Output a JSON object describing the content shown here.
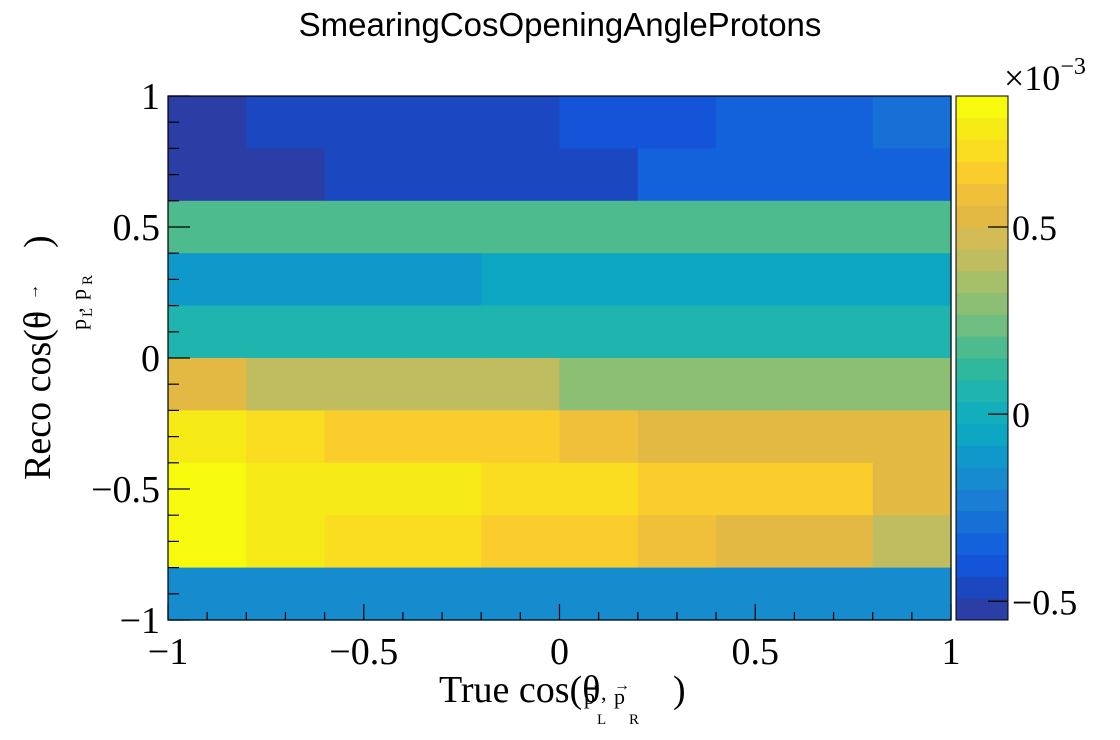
{
  "chart_data": {
    "type": "heatmap",
    "title": "SmearingCosOpeningAngleProtons",
    "xlabel": {
      "prefix": "True cos(θ",
      "suffix": ")"
    },
    "ylabel": {
      "prefix": "Reco cos(θ",
      "suffix": ")"
    },
    "subscript": {
      "p": "p",
      "L": "L",
      "R": "R",
      "comma": ","
    },
    "xlim": [
      -1,
      1
    ],
    "ylim": [
      -1,
      1
    ],
    "x_ticks": [
      "−1",
      "−0.5",
      "0",
      "0.5",
      "1"
    ],
    "y_ticks": [
      "−1",
      "−0.5",
      "0",
      "0.5",
      "1"
    ],
    "colorbar": {
      "exponent_base": "×10",
      "exponent_power": "−3",
      "range": [
        -0.00055,
        0.00085
      ],
      "ticks": [
        "−0.5",
        "0",
        "0.5"
      ],
      "tick_values": [
        -0.0005,
        0,
        0.0005
      ]
    },
    "x_edges": [
      -1,
      -0.8,
      -0.6,
      -0.4,
      -0.2,
      0,
      0.2,
      0.4,
      0.6,
      0.8,
      1
    ],
    "y_edges": [
      -1,
      -0.8,
      -0.6,
      -0.4,
      -0.2,
      0,
      0.2,
      0.4,
      0.6,
      0.8,
      1
    ],
    "z_rows_top_to_bottom": [
      [
        -0.00055,
        -0.00045,
        -0.00045,
        -0.00045,
        -0.00045,
        -0.0004,
        -0.0004,
        -0.00035,
        -0.00035,
        -0.0003
      ],
      [
        -0.00055,
        -0.00055,
        -0.00045,
        -0.00045,
        -0.00045,
        -0.00045,
        -0.00035,
        -0.00035,
        -0.00035,
        -0.00035
      ],
      [
        0.00015,
        0.00015,
        0.00015,
        0.00015,
        0.00015,
        0.00015,
        0.00015,
        0.00015,
        0.00015,
        0.00015
      ],
      [
        -0.0001,
        -0.0001,
        -0.0001,
        -0.0001,
        -5e-05,
        -5e-05,
        -5e-05,
        -5e-05,
        -5e-05,
        -5e-05
      ],
      [
        5e-05,
        5e-05,
        5e-05,
        5e-05,
        5e-05,
        5e-05,
        5e-05,
        5e-05,
        5e-05,
        5e-05
      ],
      [
        0.00055,
        0.0004,
        0.0004,
        0.0004,
        0.0004,
        0.0003,
        0.0003,
        0.0003,
        0.0003,
        0.0003
      ],
      [
        0.00075,
        0.0007,
        0.00065,
        0.00065,
        0.00065,
        0.0006,
        0.00055,
        0.00055,
        0.00055,
        0.00055
      ],
      [
        0.00085,
        0.00078,
        0.00078,
        0.00075,
        0.00072,
        0.00072,
        0.00065,
        0.00062,
        0.00062,
        0.00055
      ],
      [
        0.00085,
        0.00075,
        0.0007,
        0.0007,
        0.00065,
        0.00065,
        0.0006,
        0.00055,
        0.00055,
        0.0004
      ],
      [
        -0.00015,
        -0.00015,
        -0.00015,
        -0.00015,
        -0.00015,
        -0.00015,
        -0.00015,
        -0.00015,
        -0.00015,
        -0.00015
      ]
    ],
    "palette": [
      "#2a3ea6",
      "#1b48c0",
      "#1354d8",
      "#1462db",
      "#1670d6",
      "#1a7ed4",
      "#168ccf",
      "#0f99ca",
      "#0ca6c3",
      "#12aebc",
      "#1fb4ad",
      "#30b89d",
      "#4ebb8e",
      "#6fbd80",
      "#8cbe73",
      "#a6bf69",
      "#c0bd60",
      "#d3bb55",
      "#e3b944",
      "#f1c03a",
      "#fbcd2c",
      "#fadc20",
      "#f5ea15",
      "#f8fa0d"
    ]
  }
}
